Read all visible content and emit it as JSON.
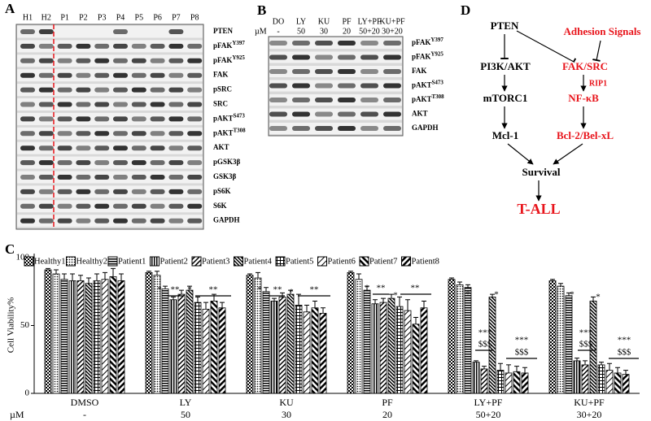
{
  "panel_a": {
    "label": "A",
    "lanes": [
      "H1",
      "H2",
      "P1",
      "P2",
      "P3",
      "P4",
      "P5",
      "P6",
      "P7",
      "P8"
    ],
    "proteins": [
      {
        "name": "PTEN"
      },
      {
        "name": "pFAK",
        "sup": "Y397"
      },
      {
        "name": "pFAK",
        "sup": "Y925"
      },
      {
        "name": "FAK"
      },
      {
        "name": "pSRC"
      },
      {
        "name": "SRC"
      },
      {
        "name": "pAKT",
        "sup": "S473"
      },
      {
        "name": "pAKT",
        "sup": "T308"
      },
      {
        "name": "AKT"
      },
      {
        "name": "pGSK3β"
      },
      {
        "name": "GSK3β"
      },
      {
        "name": "pS6K"
      },
      {
        "name": "S6K"
      },
      {
        "name": "GAPDH"
      }
    ]
  },
  "panel_b": {
    "label": "B",
    "unit": "µM",
    "lanes": [
      {
        "drug": "DO",
        "dose": "-"
      },
      {
        "drug": "LY",
        "dose": "50"
      },
      {
        "drug": "KU",
        "dose": "30"
      },
      {
        "drug": "PF",
        "dose": "20"
      },
      {
        "drug": "LY+PF",
        "dose": "50+20"
      },
      {
        "drug": "KU+PF",
        "dose": "30+20"
      }
    ],
    "proteins": [
      {
        "name": "pFAK",
        "sup": "Y397"
      },
      {
        "name": "pFAK",
        "sup": "Y925"
      },
      {
        "name": "FAK"
      },
      {
        "name": "pAKT",
        "sup": "S473"
      },
      {
        "name": "pAKT",
        "sup": "T308"
      },
      {
        "name": "AKT"
      },
      {
        "name": "GAPDH"
      }
    ]
  },
  "panel_d": {
    "label": "D",
    "nodes": [
      {
        "label": "PTEN",
        "color": "#000000"
      },
      {
        "label": "Adhesion Signals",
        "color": "#e8141b"
      },
      {
        "label": "PI3K/AKT",
        "color": "#000000"
      },
      {
        "label": "FAK/SRC",
        "color": "#e8141b"
      },
      {
        "label": "RIP1",
        "color": "#e8141b"
      },
      {
        "label": "mTORC1",
        "color": "#000000"
      },
      {
        "label": "NF-κB",
        "color": "#e8141b"
      },
      {
        "label": "Mcl-1",
        "color": "#000000"
      },
      {
        "label": "Bcl-2/Bel-xL",
        "color": "#e8141b"
      },
      {
        "label": "Survival",
        "color": "#000000"
      },
      {
        "label": "T-ALL",
        "color": "#e8141b"
      }
    ]
  },
  "chart_data": {
    "type": "bar",
    "panel_label": "C",
    "ylabel": "Cell Viability%",
    "unit_label": "µM",
    "categories": [
      "DMSO",
      "LY",
      "KU",
      "PF",
      "LY+PF",
      "KU+PF"
    ],
    "doses": [
      "-",
      "50",
      "30",
      "20",
      "50+20",
      "30+20"
    ],
    "ylim": [
      0,
      100
    ],
    "yticks": [
      0,
      50,
      100
    ],
    "series": [
      {
        "name": "Healthy1",
        "color": "#000000",
        "pattern": "checker",
        "values": [
          91,
          89,
          87,
          89,
          84,
          83
        ],
        "errors": [
          1,
          1,
          1,
          1,
          1,
          1
        ]
      },
      {
        "name": "Healthy2",
        "color": "#000000",
        "pattern": "dots",
        "values": [
          88,
          87,
          85,
          84,
          80,
          79
        ],
        "errors": [
          3,
          3,
          4,
          4,
          2,
          2
        ]
      },
      {
        "name": "Patient1",
        "color": "#000000",
        "pattern": "hlines",
        "values": [
          84,
          77,
          75,
          76,
          78,
          72
        ],
        "errors": [
          4,
          2,
          3,
          3,
          2,
          2
        ]
      },
      {
        "name": "Patient2",
        "color": "#000000",
        "pattern": "vlines",
        "values": [
          83,
          69,
          68,
          66,
          23,
          24
        ],
        "errors": [
          5,
          2,
          2,
          3,
          1,
          2
        ]
      },
      {
        "name": "Patient3",
        "color": "#000000",
        "pattern": "diag",
        "values": [
          83,
          73,
          71,
          67,
          18,
          21
        ],
        "errors": [
          4,
          3,
          3,
          3,
          2,
          3
        ]
      },
      {
        "name": "Patient4",
        "color": "#000000",
        "pattern": "bdiag",
        "values": [
          81,
          76,
          73,
          70,
          71,
          68
        ],
        "errors": [
          4,
          3,
          3,
          3,
          2,
          3
        ]
      },
      {
        "name": "Patient5",
        "color": "#000000",
        "pattern": "cross",
        "values": [
          83,
          67,
          65,
          64,
          17,
          21
        ],
        "errors": [
          5,
          4,
          8,
          7,
          5,
          2
        ]
      },
      {
        "name": "Patient6",
        "color": "#000000",
        "pattern": "diag2",
        "values": [
          84,
          62,
          60,
          61,
          15,
          17
        ],
        "errors": [
          5,
          5,
          5,
          8,
          6,
          5
        ]
      },
      {
        "name": "Patient7",
        "color": "#000000",
        "pattern": "bdiag2",
        "values": [
          86,
          68,
          63,
          51,
          16,
          15
        ],
        "errors": [
          6,
          5,
          5,
          5,
          4,
          4
        ]
      },
      {
        "name": "Patient8",
        "color": "#000000",
        "pattern": "diag3",
        "values": [
          83,
          63,
          59,
          63,
          15,
          14
        ],
        "errors": [
          5,
          4,
          4,
          5,
          4,
          3
        ]
      }
    ],
    "annotations": [
      "*",
      "**",
      "*",
      "**",
      "*",
      "**",
      "*",
      "**",
      "*",
      "**",
      "*",
      "**",
      "*",
      "***",
      "$$$",
      "*",
      "***",
      "$$$",
      "*",
      "***",
      "$$$",
      "*",
      "***",
      "$$$"
    ]
  }
}
